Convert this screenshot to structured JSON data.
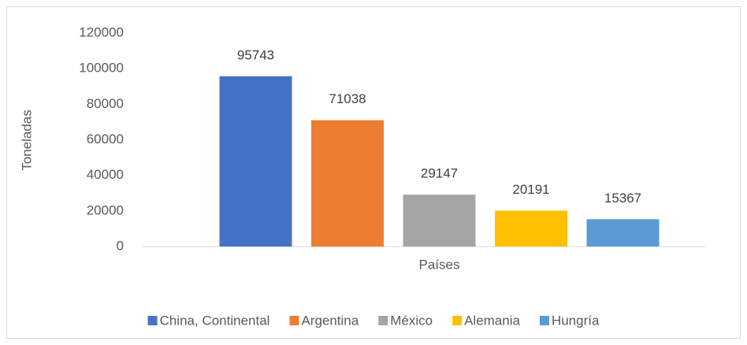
{
  "chart_data": {
    "type": "bar",
    "y_label": "Toneladas",
    "categories": [
      "Países"
    ],
    "series": [
      {
        "name": "China, Continental",
        "color": "#4472c4",
        "values": [
          95743
        ]
      },
      {
        "name": "Argentina",
        "color": "#ed7d31",
        "values": [
          71038
        ]
      },
      {
        "name": "México",
        "color": "#a5a5a5",
        "values": [
          29147
        ]
      },
      {
        "name": "Alemania",
        "color": "#ffc000",
        "values": [
          20191
        ]
      },
      {
        "name": "Hungría",
        "color": "#5b9bd5",
        "values": [
          15367
        ]
      }
    ],
    "ylim": [
      0,
      120000
    ],
    "yticks": [
      0,
      20000,
      40000,
      60000,
      80000,
      100000,
      120000
    ],
    "grid": false,
    "legend": "bottom"
  }
}
